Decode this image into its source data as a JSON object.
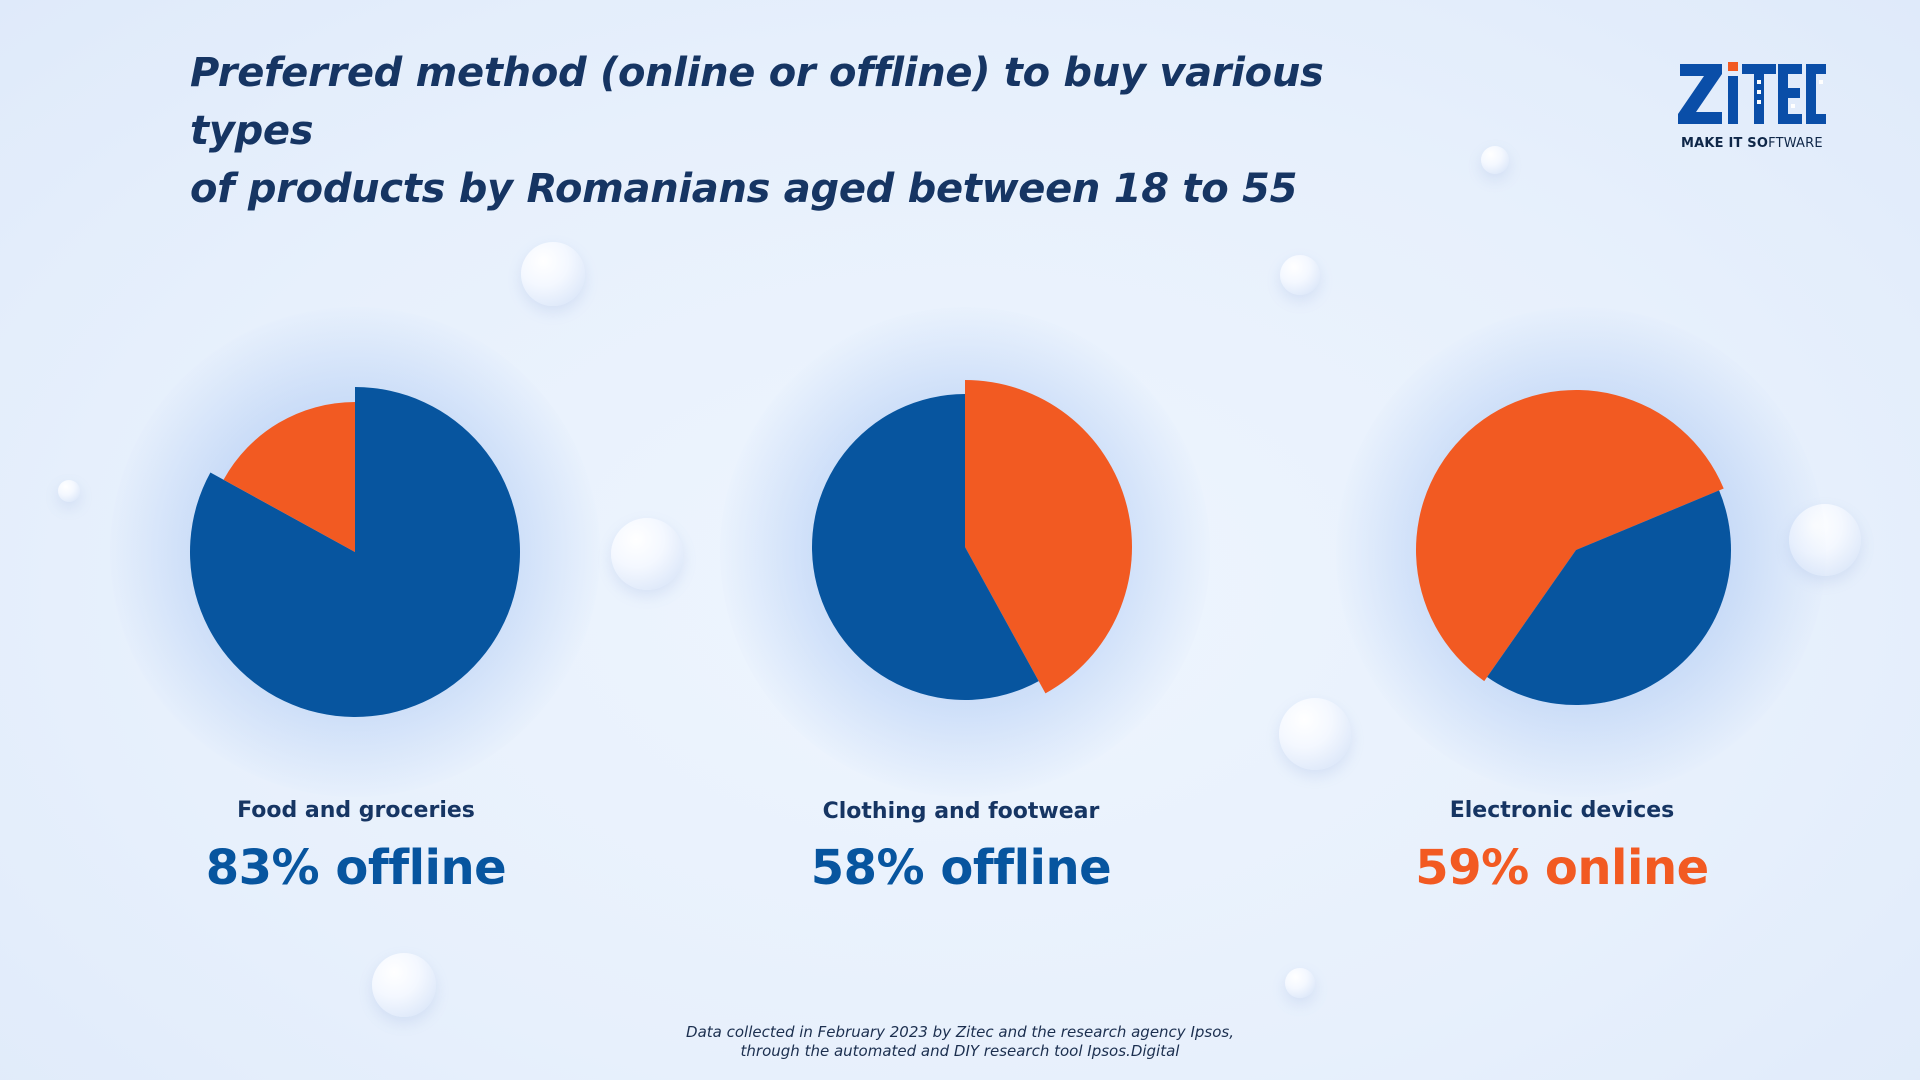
{
  "title_line1": "Preferred method (online or offline) to buy various types",
  "title_line2": "of products by Romanians aged between 18 to 55",
  "logo": {
    "brand": "ZiTEC",
    "tagline_bold": "MAKE IT SO",
    "tagline_rest": "FTWARE"
  },
  "footnote_line1": "Data collected in February 2023 by Zitec and the research agency Ipsos,",
  "footnote_line2": "through the automated and DIY research tool Ipsos.Digital",
  "colors": {
    "offline": "#07559f",
    "online": "#f25a22",
    "title": "#163563"
  },
  "chart_data": [
    {
      "type": "pie",
      "category": "Food and groceries",
      "headline": "83% offline",
      "headline_color": "#07559f",
      "slices": [
        {
          "name": "offline",
          "value": 83,
          "color": "#07559f"
        },
        {
          "name": "online",
          "value": 17,
          "color": "#f25a22"
        }
      ]
    },
    {
      "type": "pie",
      "category": "Clothing and footwear",
      "headline": "58% offline",
      "headline_color": "#07559f",
      "slices": [
        {
          "name": "online",
          "value": 42,
          "color": "#f25a22"
        },
        {
          "name": "offline",
          "value": 58,
          "color": "#07559f"
        }
      ]
    },
    {
      "type": "pie",
      "category": "Electronic devices",
      "headline": "59% online",
      "headline_color": "#f25a22",
      "slices": [
        {
          "name": "online",
          "value": 59,
          "color": "#f25a22"
        },
        {
          "name": "offline",
          "value": 41,
          "color": "#07559f"
        }
      ]
    }
  ]
}
